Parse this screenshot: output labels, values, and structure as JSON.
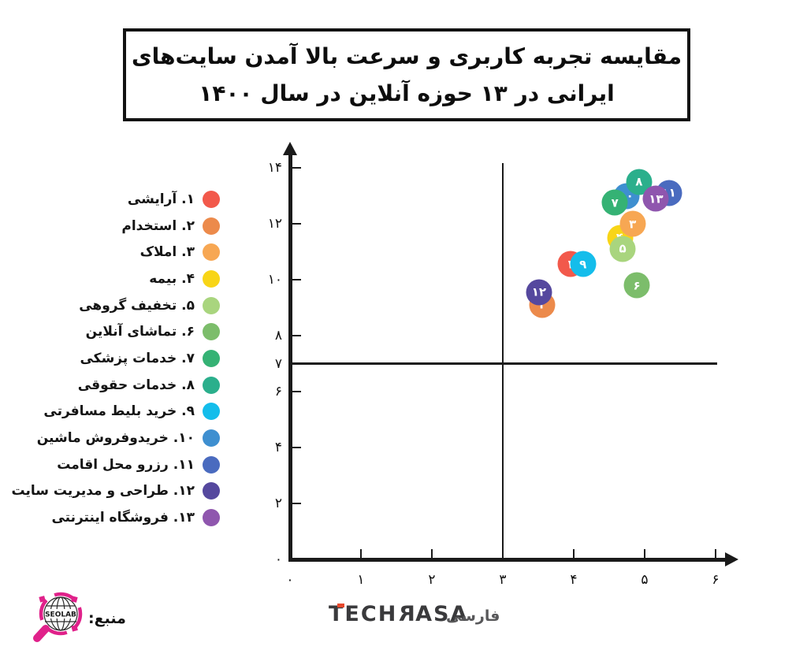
{
  "title": {
    "line1": "مقایسه تجربه کاربری و سرعت بالا آمدن سایت‌های",
    "line2": "ایرانی در ۱۳ حوزه آنلاین در سال ۱۴۰۰"
  },
  "chart_data": {
    "type": "scatter",
    "title": "مقایسه تجربه کاربری و سرعت بالا آمدن سایت‌های ایرانی در ۱۳ حوزه آنلاین در سال ۱۴۰۰",
    "xlim": [
      0,
      6
    ],
    "ylim": [
      0,
      14
    ],
    "grid": false,
    "legend_position": "left",
    "x_ticks": [
      {
        "value": 0,
        "label": "۰",
        "mark": false
      },
      {
        "value": 1,
        "label": "۱",
        "mark": true
      },
      {
        "value": 2,
        "label": "۲",
        "mark": true
      },
      {
        "value": 3,
        "label": "۳",
        "mark": true
      },
      {
        "value": 4,
        "label": "۴",
        "mark": true
      },
      {
        "value": 5,
        "label": "۵",
        "mark": true
      },
      {
        "value": 6,
        "label": "۶",
        "mark": true
      }
    ],
    "y_ticks": [
      {
        "value": 0,
        "label": "۰",
        "mark": false
      },
      {
        "value": 2,
        "label": "۲",
        "mark": true
      },
      {
        "value": 4,
        "label": "۴",
        "mark": true
      },
      {
        "value": 6,
        "label": "۶",
        "mark": true
      },
      {
        "value": 7,
        "label": "۷",
        "mark": false
      },
      {
        "value": 8,
        "label": "۸",
        "mark": true
      },
      {
        "value": 10,
        "label": "۱۰",
        "mark": true
      },
      {
        "value": 12,
        "label": "۱۲",
        "mark": true
      },
      {
        "value": 14,
        "label": "۱۴",
        "mark": true
      }
    ],
    "reference_lines": {
      "vertical_at_x": 3,
      "horizontal_at_y": 7
    },
    "points": [
      {
        "id": 1,
        "num": "۱",
        "label": "آرایشی",
        "color": "#F2594B",
        "x": 3.95,
        "y": 10.55
      },
      {
        "id": 2,
        "num": "۲",
        "label": "استخدام",
        "color": "#EC8A4B",
        "x": 3.56,
        "y": 9.1
      },
      {
        "id": 3,
        "num": "۳",
        "label": "املاک",
        "color": "#F7A753",
        "x": 4.83,
        "y": 12.0
      },
      {
        "id": 4,
        "num": "۴",
        "label": "بیمه",
        "color": "#F8D517",
        "x": 4.65,
        "y": 11.5
      },
      {
        "id": 5,
        "num": "۵",
        "label": "تخفیف گروهی",
        "color": "#A9D57E",
        "x": 4.69,
        "y": 11.1
      },
      {
        "id": 6,
        "num": "۶",
        "label": "تماشای آنلاین",
        "color": "#7CBD6B",
        "x": 4.89,
        "y": 9.8
      },
      {
        "id": 7,
        "num": "۷",
        "label": "خدمات پزشکی",
        "color": "#35B274",
        "x": 4.58,
        "y": 12.75
      },
      {
        "id": 8,
        "num": "۸",
        "label": "خدمات حقوقی",
        "color": "#2BAF8C",
        "x": 4.92,
        "y": 13.5
      },
      {
        "id": 9,
        "num": "۹",
        "label": "خرید بلیط مسافرتی",
        "color": "#14BDEB",
        "x": 4.13,
        "y": 10.55
      },
      {
        "id": 10,
        "num": "۱۰",
        "label": "خریدوفروش ماشین",
        "color": "#3E8FD0",
        "x": 4.74,
        "y": 13.0
      },
      {
        "id": 11,
        "num": "۱۱",
        "label": "رزرو محل اقامت",
        "color": "#4A6BBF",
        "x": 5.34,
        "y": 13.1
      },
      {
        "id": 12,
        "num": "۱۲",
        "label": "طراحی و مدیریت سایت",
        "color": "#55489E",
        "x": 3.51,
        "y": 9.55
      },
      {
        "id": 13,
        "num": "۱۳",
        "label": "فروشگاه اینترنتی",
        "color": "#8F56AE",
        "x": 5.16,
        "y": 12.9
      }
    ],
    "z_order": [
      10,
      8,
      7,
      11,
      13,
      4,
      3,
      5,
      1,
      9,
      6,
      2,
      12
    ]
  },
  "footer": {
    "source_label": "منبع:",
    "seolab_text": "SEOLAB",
    "brand_name": "TECHRASA",
    "brand_suffix_fa": "فارسی",
    "brand_color": "#3a3a3c",
    "brand_accent": "#e8482c",
    "seolab_color": "#E0218A"
  }
}
